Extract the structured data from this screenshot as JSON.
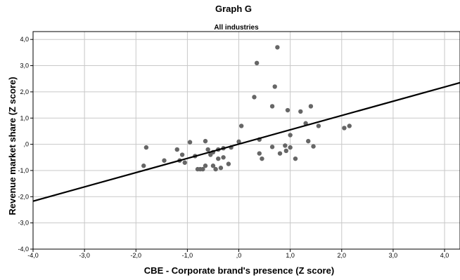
{
  "chart_data": {
    "type": "scatter",
    "title": "Graph G",
    "subtitle": "All industries",
    "xlabel": "CBE - Corporate brand's presence (Z score)",
    "ylabel": "Revenue market share (Z score)",
    "xlim": [
      -4.0,
      4.3
    ],
    "ylim": [
      -4.0,
      4.3
    ],
    "x_ticks": [
      {
        "value": -4.0,
        "label": "-4,0"
      },
      {
        "value": -3.0,
        "label": "-3,0"
      },
      {
        "value": -2.0,
        "label": "-2,0"
      },
      {
        "value": -1.0,
        "label": "-1,0"
      },
      {
        "value": 0.0,
        "label": ",0"
      },
      {
        "value": 1.0,
        "label": "1,0"
      },
      {
        "value": 2.0,
        "label": "2,0"
      },
      {
        "value": 3.0,
        "label": "3,0"
      },
      {
        "value": 4.0,
        "label": "4,0"
      }
    ],
    "y_ticks": [
      {
        "value": -4.0,
        "label": "-4,0"
      },
      {
        "value": -3.0,
        "label": "-3,0"
      },
      {
        "value": -2.0,
        "label": "-2,0"
      },
      {
        "value": -1.0,
        "label": "-1,0"
      },
      {
        "value": 0.0,
        "label": ",0"
      },
      {
        "value": 1.0,
        "label": "1,0"
      },
      {
        "value": 2.0,
        "label": "2,0"
      },
      {
        "value": 3.0,
        "label": "3,0"
      },
      {
        "value": 4.0,
        "label": "4,0"
      }
    ],
    "grid": true,
    "point_color": "#666666",
    "line_color": "#000000",
    "fit_line": {
      "x1": -4.0,
      "y1": -2.17,
      "x2": 4.3,
      "y2": 2.35
    },
    "points": [
      {
        "x": -1.85,
        "y": -0.82
      },
      {
        "x": -1.8,
        "y": -0.12
      },
      {
        "x": -1.45,
        "y": -0.62
      },
      {
        "x": -1.2,
        "y": -0.2
      },
      {
        "x": -1.15,
        "y": -0.62
      },
      {
        "x": -1.1,
        "y": -0.4
      },
      {
        "x": -1.05,
        "y": -0.7
      },
      {
        "x": -0.95,
        "y": 0.08
      },
      {
        "x": -0.85,
        "y": -0.45
      },
      {
        "x": -0.8,
        "y": -0.95
      },
      {
        "x": -0.75,
        "y": -0.95
      },
      {
        "x": -0.7,
        "y": -0.95
      },
      {
        "x": -0.65,
        "y": -0.82
      },
      {
        "x": -0.65,
        "y": 0.12
      },
      {
        "x": -0.6,
        "y": -0.2
      },
      {
        "x": -0.55,
        "y": -0.4
      },
      {
        "x": -0.5,
        "y": -0.82
      },
      {
        "x": -0.5,
        "y": -0.3
      },
      {
        "x": -0.45,
        "y": -0.95
      },
      {
        "x": -0.4,
        "y": -0.2
      },
      {
        "x": -0.4,
        "y": -0.55
      },
      {
        "x": -0.35,
        "y": -0.9
      },
      {
        "x": -0.3,
        "y": -0.5
      },
      {
        "x": -0.3,
        "y": -0.15
      },
      {
        "x": -0.2,
        "y": -0.75
      },
      {
        "x": -0.15,
        "y": -0.12
      },
      {
        "x": 0.0,
        "y": 0.1
      },
      {
        "x": 0.05,
        "y": 0.7
      },
      {
        "x": 0.3,
        "y": 1.8
      },
      {
        "x": 0.35,
        "y": 3.1
      },
      {
        "x": 0.4,
        "y": -0.35
      },
      {
        "x": 0.4,
        "y": 0.18
      },
      {
        "x": 0.45,
        "y": -0.55
      },
      {
        "x": 0.65,
        "y": 1.45
      },
      {
        "x": 0.65,
        "y": -0.1
      },
      {
        "x": 0.7,
        "y": 2.2
      },
      {
        "x": 0.75,
        "y": 3.7
      },
      {
        "x": 0.8,
        "y": -0.35
      },
      {
        "x": 0.9,
        "y": -0.05
      },
      {
        "x": 0.92,
        "y": -0.25
      },
      {
        "x": 0.95,
        "y": 1.3
      },
      {
        "x": 1.0,
        "y": 0.35
      },
      {
        "x": 1.0,
        "y": -0.12
      },
      {
        "x": 1.1,
        "y": -0.55
      },
      {
        "x": 1.2,
        "y": 1.25
      },
      {
        "x": 1.3,
        "y": 0.8
      },
      {
        "x": 1.35,
        "y": 0.12
      },
      {
        "x": 1.4,
        "y": 1.45
      },
      {
        "x": 1.45,
        "y": -0.08
      },
      {
        "x": 1.55,
        "y": 0.7
      },
      {
        "x": 2.05,
        "y": 0.62
      },
      {
        "x": 2.15,
        "y": 0.7
      }
    ]
  }
}
